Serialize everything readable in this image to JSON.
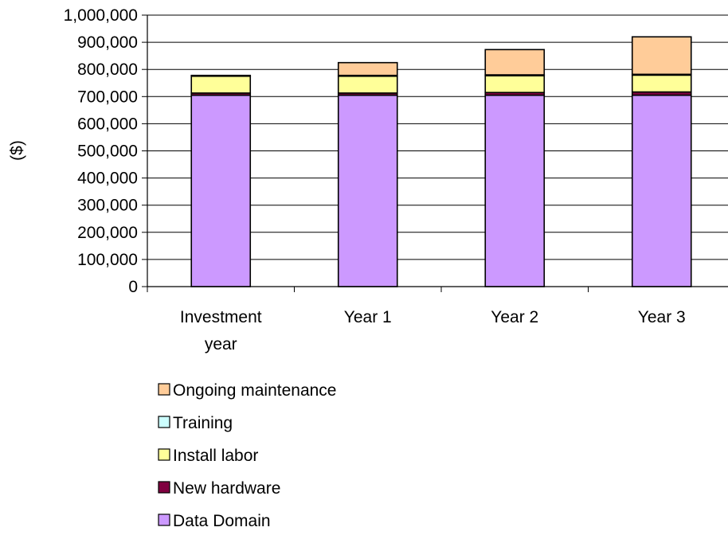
{
  "chart_data": {
    "type": "bar",
    "stacked": true,
    "categories": [
      "Investment year",
      "Year 1",
      "Year 2",
      "Year 3"
    ],
    "category_lines": [
      [
        "Investment",
        "year"
      ],
      [
        "Year 1"
      ],
      [
        "Year 2"
      ],
      [
        "Year 3"
      ]
    ],
    "ylabel": "($)",
    "ylim": [
      0,
      1000000
    ],
    "yticks": [
      0,
      100000,
      200000,
      300000,
      400000,
      500000,
      600000,
      700000,
      800000,
      900000,
      1000000
    ],
    "ytick_labels": [
      "0",
      "100,000",
      "200,000",
      "300,000",
      "400,000",
      "500,000",
      "600,000",
      "700,000",
      "800,000",
      "900,000",
      "1,000,000"
    ],
    "grid": true,
    "legend_position": "bottom",
    "series": [
      {
        "name": "Data Domain",
        "color": "#cc99ff",
        "values": [
          705000,
          705000,
          705000,
          705000
        ]
      },
      {
        "name": "New hardware",
        "color": "#800040",
        "values": [
          8000,
          8000,
          10000,
          12000
        ]
      },
      {
        "name": "Install labor",
        "color": "#ffff99",
        "values": [
          62000,
          62000,
          62000,
          62000
        ]
      },
      {
        "name": "Training",
        "color": "#ccffff",
        "values": [
          3000,
          3000,
          3000,
          3000
        ]
      },
      {
        "name": "Ongoing maintenance",
        "color": "#ffcc99",
        "values": [
          0,
          47000,
          93000,
          138000
        ]
      }
    ],
    "legend_order": [
      "Ongoing maintenance",
      "Training",
      "Install labor",
      "New hardware",
      "Data Domain"
    ]
  }
}
